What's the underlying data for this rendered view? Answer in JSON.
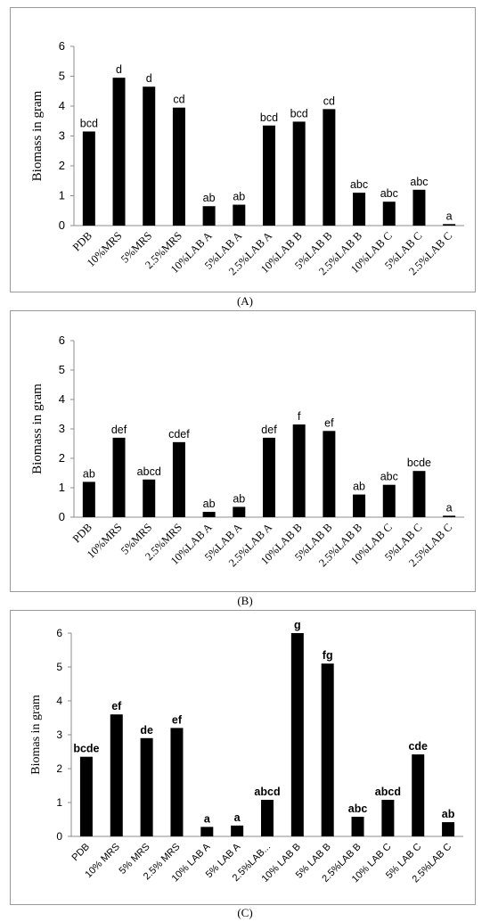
{
  "panels": [
    {
      "caption": "(A)"
    },
    {
      "caption": "(B)"
    },
    {
      "caption": "(C)"
    }
  ],
  "chart_data": [
    {
      "type": "bar",
      "ylabel": "Biomass in gram",
      "ylim": [
        0,
        6
      ],
      "yticks": [
        "0",
        "1",
        "2",
        "3",
        "4",
        "5",
        "6"
      ],
      "grid": false,
      "categories": [
        "PDB",
        "10%MRS",
        "5%MRS",
        "2.5%MRS",
        "10%LAB A",
        "5%LAB A",
        "2.5%LAB A",
        "10%LAB B",
        "5%LAB B",
        "2.5%LAB B",
        "10%LAB C",
        "5%LAB C",
        "2.5%LAB C"
      ],
      "values": [
        3.15,
        4.95,
        4.65,
        3.95,
        0.65,
        0.7,
        3.35,
        3.48,
        3.9,
        1.1,
        0.8,
        1.2,
        0.05
      ],
      "labels": [
        "bcd",
        "d",
        "d",
        "cd",
        "ab",
        "ab",
        "bcd",
        "bcd",
        "cd",
        "abc",
        "abc",
        "abc",
        "a"
      ]
    },
    {
      "type": "bar",
      "ylabel": "Biomass in gram",
      "ylim": [
        0,
        6
      ],
      "yticks": [
        "0",
        "1",
        "2",
        "3",
        "4",
        "5",
        "6"
      ],
      "grid": false,
      "categories": [
        "PDB",
        "10%MRS",
        "5%MRS",
        "2.5%MRS",
        "10%LAB A",
        "5%LAB A",
        "2.5%LAB A",
        "10%LAB B",
        "5%LAB B",
        "2.5%LAB B",
        "10%LAB C",
        "5%LAB C",
        "2.5%LAB C"
      ],
      "values": [
        1.2,
        2.7,
        1.28,
        2.55,
        0.18,
        0.35,
        2.7,
        3.15,
        2.93,
        0.77,
        1.1,
        1.57,
        0.05
      ],
      "labels": [
        "ab",
        "def",
        "abcd",
        "cdef",
        "ab",
        "ab",
        "def",
        "f",
        "ef",
        "ab",
        "abc",
        "bcde",
        "a"
      ]
    },
    {
      "type": "bar",
      "ylabel": "Biomas in gram",
      "ylim": [
        0,
        6
      ],
      "yticks": [
        "0",
        "1",
        "2",
        "3",
        "4",
        "5",
        "6"
      ],
      "grid": false,
      "categories": [
        "PDB",
        "10% MRS",
        "5% MRS",
        "2.5% MRS",
        "10% LAB A",
        "5% LAB A",
        "2.5%LAB...",
        "10% LAB B",
        "5% LAB B",
        "2.5%LAB B",
        "10% LAB C",
        "5% LAB C",
        "2.5%LAB C"
      ],
      "values": [
        2.35,
        3.6,
        2.9,
        3.2,
        0.28,
        0.32,
        1.08,
        6.0,
        5.1,
        0.58,
        1.08,
        2.42,
        0.42
      ],
      "labels": [
        "bcde",
        "ef",
        "de",
        "ef",
        "a",
        "a",
        "abcd",
        "g",
        "fg",
        "abc",
        "abcd",
        "cde",
        "ab"
      ]
    }
  ]
}
